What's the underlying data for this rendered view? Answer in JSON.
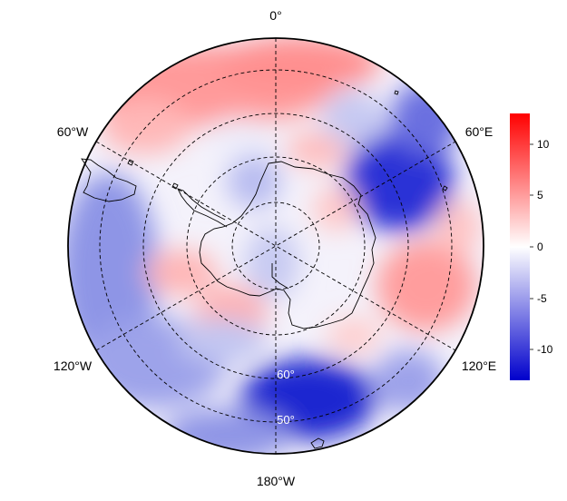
{
  "map": {
    "projection": "south-polar-stereographic",
    "longitude_labels": {
      "top": "0°",
      "upper_left": "60°W",
      "upper_right": "60°E",
      "lower_left": "120°W",
      "lower_right": "120°E",
      "bottom": "180°W"
    },
    "latitude_labels": [
      "60°",
      "50°"
    ],
    "colorbar": {
      "colormap": "blue-white-red",
      "min": -13,
      "max": 13,
      "ticks": [
        "10",
        "5",
        "0",
        "-5",
        "-10"
      ],
      "colors": {
        "low": "#0000cc",
        "mid": "#ffffff",
        "high": "#ff0000"
      }
    }
  }
}
